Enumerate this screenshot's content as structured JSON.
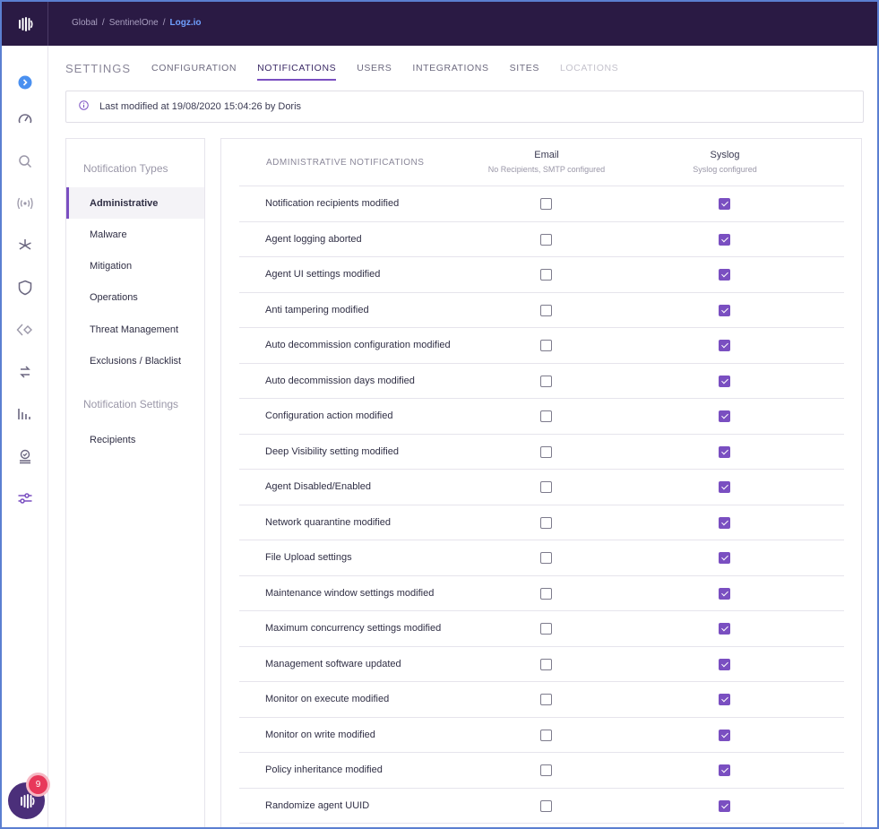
{
  "breadcrumb": {
    "items": [
      "Global",
      "SentinelOne"
    ],
    "current": "Logz.io"
  },
  "tabs": {
    "title": "SETTINGS",
    "items": [
      "CONFIGURATION",
      "NOTIFICATIONS",
      "USERS",
      "INTEGRATIONS",
      "SITES",
      "LOCATIONS"
    ],
    "active": "NOTIFICATIONS",
    "disabled": "LOCATIONS"
  },
  "banner": {
    "text": "Last modified at 19/08/2020 15:04:26 by Doris"
  },
  "menu": {
    "types_header": "Notification Types",
    "types": [
      "Administrative",
      "Malware",
      "Mitigation",
      "Operations",
      "Threat Management",
      "Exclusions / Blacklist"
    ],
    "active": "Administrative",
    "settings_header": "Notification Settings",
    "settings": [
      "Recipients"
    ]
  },
  "table": {
    "header": "ADMINISTRATIVE NOTIFICATIONS",
    "email": {
      "title": "Email",
      "subtitle": "No Recipients, SMTP configured"
    },
    "syslog": {
      "title": "Syslog",
      "subtitle": "Syslog configured"
    },
    "rows": [
      {
        "name": "Notification recipients modified",
        "email": false,
        "syslog": true
      },
      {
        "name": "Agent logging aborted",
        "email": false,
        "syslog": true
      },
      {
        "name": "Agent UI settings modified",
        "email": false,
        "syslog": true
      },
      {
        "name": "Anti tampering modified",
        "email": false,
        "syslog": true
      },
      {
        "name": "Auto decommission configuration modified",
        "email": false,
        "syslog": true
      },
      {
        "name": "Auto decommission days modified",
        "email": false,
        "syslog": true
      },
      {
        "name": "Configuration action modified",
        "email": false,
        "syslog": true
      },
      {
        "name": "Deep Visibility setting modified",
        "email": false,
        "syslog": true
      },
      {
        "name": "Agent Disabled/Enabled",
        "email": false,
        "syslog": true
      },
      {
        "name": "Network quarantine modified",
        "email": false,
        "syslog": true
      },
      {
        "name": "File Upload settings",
        "email": false,
        "syslog": true
      },
      {
        "name": "Maintenance window settings modified",
        "email": false,
        "syslog": true
      },
      {
        "name": "Maximum concurrency settings modified",
        "email": false,
        "syslog": true
      },
      {
        "name": "Management software updated",
        "email": false,
        "syslog": true
      },
      {
        "name": "Monitor on execute modified",
        "email": false,
        "syslog": true
      },
      {
        "name": "Monitor on write modified",
        "email": false,
        "syslog": true
      },
      {
        "name": "Policy inheritance modified",
        "email": false,
        "syslog": true
      },
      {
        "name": "Randomize agent UUID",
        "email": false,
        "syslog": true
      }
    ]
  },
  "sidenav": {
    "icons": [
      "expand-icon",
      "dashboard-gauge-icon",
      "search-icon",
      "broadcast-icon",
      "sparkle-icon",
      "shield-icon",
      "diamond-arrow-icon",
      "sync-icon",
      "bar-chart-icon",
      "approval-icon",
      "sliders-icon"
    ]
  },
  "chat": {
    "badge_count": "9"
  },
  "colors": {
    "topbar": "#2a1a44",
    "accent": "#7a4fc1",
    "link": "#6fa0ff",
    "badge": "#e8385a"
  }
}
